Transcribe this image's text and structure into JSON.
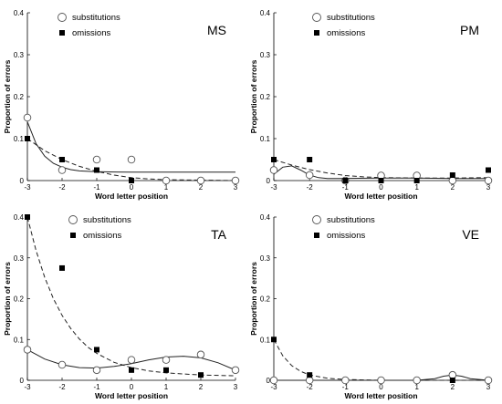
{
  "chart_data": [
    {
      "type": "scatter",
      "panel_label": "MS",
      "xlabel": "Word letter position",
      "ylabel": "Proportion of errors",
      "xlim": [
        -3,
        3
      ],
      "ylim": [
        0,
        0.4
      ],
      "xticks": [
        "-3",
        "-2",
        "-1",
        "0",
        "1",
        "2",
        "3"
      ],
      "yticks": [
        "0",
        "0.1",
        "0.2",
        "0.3",
        "0.4"
      ],
      "legend": [
        "substitutions",
        "omissions"
      ],
      "legend_position": "top-left",
      "series": [
        {
          "name": "substitutions",
          "marker": "open-circle",
          "points": [
            [
              -3,
              0.15
            ],
            [
              -2,
              0.025
            ],
            [
              -1,
              0.05
            ],
            [
              0,
              0.05
            ],
            [
              1,
              0.0
            ],
            [
              2,
              0.0
            ],
            [
              3,
              0.0
            ]
          ],
          "fit": "solid",
          "fit_curve": [
            [
              -3,
              0.14
            ],
            [
              -2.75,
              0.088
            ],
            [
              -2.5,
              0.058
            ],
            [
              -2.25,
              0.041
            ],
            [
              -2,
              0.032
            ],
            [
              -1.75,
              0.026
            ],
            [
              -1.5,
              0.023
            ],
            [
              -1.25,
              0.022
            ],
            [
              -1,
              0.021
            ],
            [
              0,
              0.02
            ],
            [
              1,
              0.02
            ],
            [
              2,
              0.02
            ],
            [
              3,
              0.02
            ]
          ]
        },
        {
          "name": "omissions",
          "marker": "filled-square",
          "points": [
            [
              -3,
              0.1
            ],
            [
              -2,
              0.05
            ],
            [
              -1,
              0.025
            ],
            [
              0,
              0.0
            ]
          ],
          "fit": "dashed",
          "fit_curve": [
            [
              -3,
              0.1
            ],
            [
              -2.5,
              0.071
            ],
            [
              -2,
              0.05
            ],
            [
              -1.5,
              0.034
            ],
            [
              -1,
              0.022
            ],
            [
              -0.5,
              0.013
            ],
            [
              0,
              0.007
            ],
            [
              0.5,
              0.004
            ],
            [
              1,
              0.002
            ],
            [
              2,
              0.001
            ],
            [
              3,
              0.0
            ]
          ]
        }
      ]
    },
    {
      "type": "scatter",
      "panel_label": "PM",
      "xlabel": "Word letter position",
      "ylabel": "Proportion of errors",
      "xlim": [
        -3,
        3
      ],
      "ylim": [
        0,
        0.4
      ],
      "xticks": [
        "-3",
        "-2",
        "-1",
        "0",
        "1",
        "2",
        "3"
      ],
      "yticks": [
        "0",
        "0.1",
        "0.2",
        "0.3",
        "0.4"
      ],
      "legend": [
        "substitutions",
        "omissions"
      ],
      "legend_position": "top-left",
      "series": [
        {
          "name": "substitutions",
          "marker": "open-circle",
          "points": [
            [
              -3,
              0.025
            ],
            [
              -2,
              0.013
            ],
            [
              -1,
              0.0
            ],
            [
              0,
              0.012
            ],
            [
              1,
              0.012
            ],
            [
              2,
              0.0
            ],
            [
              3,
              0.0
            ]
          ],
          "fit": "solid",
          "fit_curve": [
            [
              -3,
              0.015
            ],
            [
              -2.75,
              0.032
            ],
            [
              -2.5,
              0.035
            ],
            [
              -2.25,
              0.025
            ],
            [
              -2,
              0.013
            ],
            [
              -1.75,
              0.007
            ],
            [
              -1.5,
              0.005
            ],
            [
              -1,
              0.005
            ],
            [
              0,
              0.006
            ],
            [
              1,
              0.006
            ],
            [
              2,
              0.005
            ],
            [
              3,
              0.005
            ]
          ]
        },
        {
          "name": "omissions",
          "marker": "filled-square",
          "points": [
            [
              -3,
              0.05
            ],
            [
              -2,
              0.05
            ],
            [
              -1,
              0.0
            ],
            [
              0,
              0.0
            ],
            [
              1,
              0.0
            ],
            [
              2,
              0.013
            ],
            [
              3,
              0.025
            ]
          ],
          "fit": "dashed",
          "fit_curve": [
            [
              -3,
              0.05
            ],
            [
              -2.5,
              0.037
            ],
            [
              -2,
              0.026
            ],
            [
              -1.5,
              0.018
            ],
            [
              -1,
              0.012
            ],
            [
              -0.5,
              0.009
            ],
            [
              0,
              0.007
            ],
            [
              1,
              0.006
            ],
            [
              2,
              0.006
            ],
            [
              3,
              0.007
            ]
          ]
        }
      ]
    },
    {
      "type": "scatter",
      "panel_label": "TA",
      "xlabel": "Word letter position",
      "ylabel": "Proportion of errors",
      "xlim": [
        -3,
        3
      ],
      "ylim": [
        0,
        0.4
      ],
      "xticks": [
        "-3",
        "-2",
        "-1",
        "0",
        "1",
        "2",
        "3"
      ],
      "yticks": [
        "0",
        "0.1",
        "0.2",
        "0.3",
        "0.4"
      ],
      "legend": [
        "substitutions",
        "omissions"
      ],
      "legend_position": "top",
      "series": [
        {
          "name": "substitutions",
          "marker": "open-circle",
          "points": [
            [
              -3,
              0.075
            ],
            [
              -2,
              0.038
            ],
            [
              -1,
              0.025
            ],
            [
              0,
              0.05
            ],
            [
              1,
              0.05
            ],
            [
              2,
              0.063
            ],
            [
              3,
              0.025
            ]
          ],
          "fit": "solid",
          "fit_curve": [
            [
              -3,
              0.075
            ],
            [
              -2.5,
              0.052
            ],
            [
              -2,
              0.038
            ],
            [
              -1.5,
              0.031
            ],
            [
              -1,
              0.03
            ],
            [
              -0.5,
              0.034
            ],
            [
              0,
              0.041
            ],
            [
              0.5,
              0.05
            ],
            [
              1,
              0.057
            ],
            [
              1.5,
              0.059
            ],
            [
              2,
              0.055
            ],
            [
              2.5,
              0.043
            ],
            [
              3,
              0.025
            ]
          ]
        },
        {
          "name": "omissions",
          "marker": "filled-square",
          "points": [
            [
              -3,
              0.4
            ],
            [
              -2,
              0.275
            ],
            [
              -1,
              0.075
            ],
            [
              0,
              0.025
            ],
            [
              1,
              0.025
            ],
            [
              2,
              0.013
            ]
          ],
          "fit": "dashed",
          "fit_curve": [
            [
              -3,
              0.4
            ],
            [
              -2.75,
              0.318
            ],
            [
              -2.5,
              0.252
            ],
            [
              -2.25,
              0.2
            ],
            [
              -2,
              0.159
            ],
            [
              -1.75,
              0.127
            ],
            [
              -1.5,
              0.101
            ],
            [
              -1.25,
              0.081
            ],
            [
              -1,
              0.066
            ],
            [
              -0.5,
              0.044
            ],
            [
              0,
              0.031
            ],
            [
              0.5,
              0.023
            ],
            [
              1,
              0.018
            ],
            [
              2,
              0.013
            ],
            [
              3,
              0.011
            ]
          ]
        }
      ]
    },
    {
      "type": "scatter",
      "panel_label": "VE",
      "xlabel": "Word letter position",
      "ylabel": "Proportion of errors",
      "xlim": [
        -3,
        3
      ],
      "ylim": [
        0,
        0.4
      ],
      "xticks": [
        "-3",
        "-2",
        "-1",
        "0",
        "1",
        "2",
        "3"
      ],
      "yticks": [
        "0",
        "0.1",
        "0.2",
        "0.3",
        "0.4"
      ],
      "legend": [
        "substitutions",
        "omissions"
      ],
      "legend_position": "top-left",
      "series": [
        {
          "name": "substitutions",
          "marker": "open-circle",
          "points": [
            [
              -3,
              0.0
            ],
            [
              -2,
              0.0
            ],
            [
              -1,
              0.0
            ],
            [
              0,
              0.0
            ],
            [
              1,
              0.0
            ],
            [
              2,
              0.013
            ],
            [
              3,
              0.0
            ]
          ],
          "fit": "solid",
          "fit_curve": [
            [
              -3,
              0.0
            ],
            [
              1,
              0.0
            ],
            [
              1.5,
              0.004
            ],
            [
              1.75,
              0.01
            ],
            [
              2,
              0.013
            ],
            [
              2.25,
              0.01
            ],
            [
              2.5,
              0.004
            ],
            [
              3,
              0.0
            ]
          ]
        },
        {
          "name": "omissions",
          "marker": "filled-square",
          "points": [
            [
              -3,
              0.1
            ],
            [
              -2,
              0.013
            ],
            [
              2,
              0.0
            ]
          ],
          "fit": "dashed",
          "fit_curve": [
            [
              -3,
              0.1
            ],
            [
              -2.75,
              0.06
            ],
            [
              -2.5,
              0.036
            ],
            [
              -2.25,
              0.022
            ],
            [
              -2,
              0.013
            ],
            [
              -1.5,
              0.005
            ],
            [
              -1,
              0.002
            ],
            [
              0,
              0.0
            ],
            [
              3,
              0.0
            ]
          ]
        }
      ]
    }
  ]
}
